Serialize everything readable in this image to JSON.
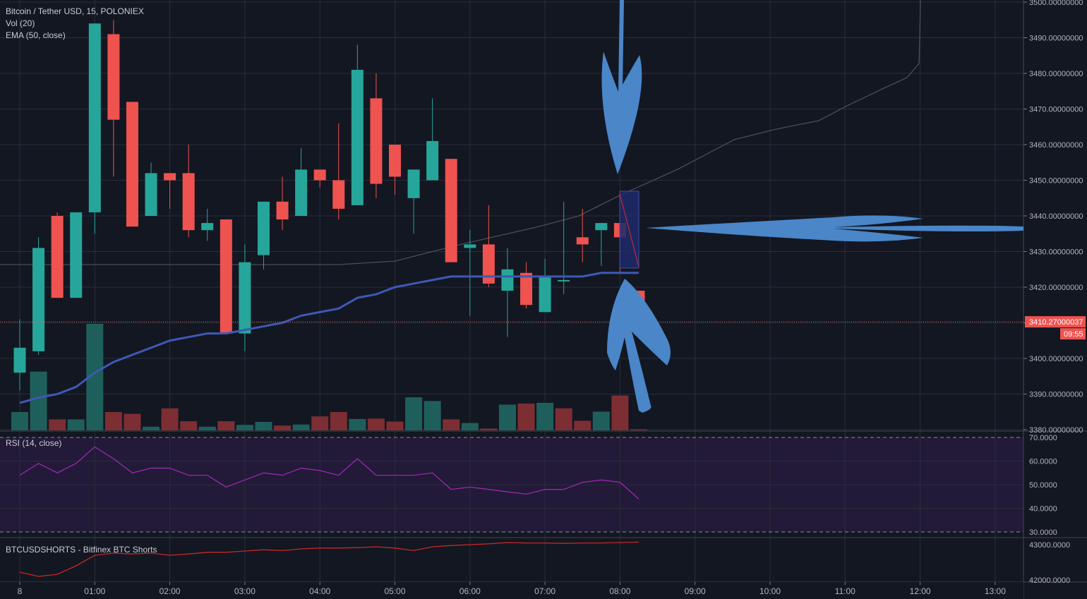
{
  "header": {
    "symbol_title": "Bitcoin / Tether USD, 15, POLONIEX",
    "vol_label": "Vol (20)",
    "ema_label": "EMA (50, close)"
  },
  "rsi": {
    "label": "RSI (14, close)"
  },
  "shorts": {
    "label": "BTCUSDSHORTS - Bitfinex BTC Shorts"
  },
  "price_tag": {
    "value": "3410.27000037",
    "countdown": "09:55"
  },
  "colors": {
    "background": "#131722",
    "grid": "#2a2e39",
    "up": "#26a69a",
    "down": "#ef5350",
    "ema": "#3f58b5",
    "rsi": "#9c27b0",
    "rsi_band": "#221a38",
    "shorts": "#c62828",
    "annotation_arrow": "#4a86c8",
    "annotation_box": "#1f2a6b"
  },
  "chart_data": [
    {
      "type": "candlestick",
      "title": "Bitcoin / Tether USD, 15, POLONIEX",
      "ylim": [
        3380,
        3500
      ],
      "y_ticks": [
        "3380.00000000",
        "3390.00000000",
        "3400.00000000",
        "3410.00000000",
        "3420.00000000",
        "3430.00000000",
        "3440.00000000",
        "3450.00000000",
        "3460.00000000",
        "3470.00000000",
        "3480.00000000",
        "3490.00000000",
        "3500.00000000"
      ],
      "x_ticks": [
        "8",
        "01:00",
        "02:00",
        "03:00",
        "04:00",
        "05:00",
        "06:00",
        "07:00",
        "08:00",
        "09:00",
        "10:00",
        "11:00",
        "12:00",
        "13:00"
      ],
      "candles": [
        {
          "t": "00:00",
          "o": 3396,
          "h": 3411,
          "l": 3391,
          "c": 3403
        },
        {
          "t": "00:15",
          "o": 3402,
          "h": 3434,
          "l": 3401,
          "c": 3431
        },
        {
          "t": "00:30",
          "o": 3440,
          "h": 3441,
          "l": 3417,
          "c": 3417
        },
        {
          "t": "00:45",
          "o": 3417,
          "h": 3441,
          "l": 3417,
          "c": 3441
        },
        {
          "t": "01:00",
          "o": 3441,
          "h": 3494,
          "l": 3435,
          "c": 3494
        },
        {
          "t": "01:15",
          "o": 3491,
          "h": 3495,
          "l": 3451,
          "c": 3467
        },
        {
          "t": "01:30",
          "o": 3472,
          "h": 3472,
          "l": 3437,
          "c": 3437
        },
        {
          "t": "01:45",
          "o": 3440,
          "h": 3455,
          "l": 3440,
          "c": 3452
        },
        {
          "t": "02:00",
          "o": 3452,
          "h": 3452,
          "l": 3442,
          "c": 3450
        },
        {
          "t": "02:15",
          "o": 3452,
          "h": 3460,
          "l": 3434,
          "c": 3436
        },
        {
          "t": "02:30",
          "o": 3436,
          "h": 3442,
          "l": 3433,
          "c": 3438
        },
        {
          "t": "02:45",
          "o": 3439,
          "h": 3439,
          "l": 3407,
          "c": 3407
        },
        {
          "t": "03:00",
          "o": 3407,
          "h": 3432,
          "l": 3402,
          "c": 3427
        },
        {
          "t": "03:15",
          "o": 3429,
          "h": 3444,
          "l": 3425,
          "c": 3444
        },
        {
          "t": "03:30",
          "o": 3444,
          "h": 3451,
          "l": 3436,
          "c": 3439
        },
        {
          "t": "03:45",
          "o": 3440,
          "h": 3459,
          "l": 3440,
          "c": 3453
        },
        {
          "t": "04:00",
          "o": 3453,
          "h": 3453,
          "l": 3448,
          "c": 3450
        },
        {
          "t": "04:15",
          "o": 3450,
          "h": 3466,
          "l": 3439,
          "c": 3442
        },
        {
          "t": "04:30",
          "o": 3443,
          "h": 3488,
          "l": 3443,
          "c": 3481
        },
        {
          "t": "04:45",
          "o": 3473,
          "h": 3480,
          "l": 3445,
          "c": 3449
        },
        {
          "t": "05:00",
          "o": 3460,
          "h": 3460,
          "l": 3446,
          "c": 3451
        },
        {
          "t": "05:15",
          "o": 3445,
          "h": 3453,
          "l": 3435,
          "c": 3453
        },
        {
          "t": "05:30",
          "o": 3450,
          "h": 3473,
          "l": 3450,
          "c": 3461
        },
        {
          "t": "05:45",
          "o": 3456,
          "h": 3456,
          "l": 3427,
          "c": 3427
        },
        {
          "t": "06:00",
          "o": 3431,
          "h": 3436,
          "l": 3412,
          "c": 3432
        },
        {
          "t": "06:15",
          "o": 3432,
          "h": 3443,
          "l": 3420,
          "c": 3421
        },
        {
          "t": "06:30",
          "o": 3419,
          "h": 3431,
          "l": 3406,
          "c": 3425
        },
        {
          "t": "06:45",
          "o": 3424,
          "h": 3427,
          "l": 3414,
          "c": 3415
        },
        {
          "t": "07:00",
          "o": 3413,
          "h": 3428,
          "l": 3413,
          "c": 3423
        },
        {
          "t": "07:15",
          "o": 3422,
          "h": 3444,
          "l": 3418,
          "c": 3422
        },
        {
          "t": "07:30",
          "o": 3434,
          "h": 3442,
          "l": 3427,
          "c": 3432
        },
        {
          "t": "07:45",
          "o": 3436,
          "h": 3438,
          "l": 3426,
          "c": 3438
        },
        {
          "t": "08:00",
          "o": 3438,
          "h": 3438,
          "l": 3424,
          "c": 3434
        },
        {
          "t": "08:15",
          "o": 3419,
          "h": 3419,
          "l": 3411,
          "c": 3411
        }
      ],
      "volume_up": [
        true,
        true,
        false,
        true,
        true,
        false,
        false,
        true,
        false,
        false,
        true,
        false,
        true,
        true,
        false,
        true,
        false,
        false,
        true,
        false,
        false,
        true,
        true,
        false,
        true,
        false,
        true,
        false,
        true,
        false,
        false,
        true,
        false,
        false
      ],
      "volume": [
        5,
        16,
        3,
        3,
        29,
        5,
        4.5,
        1,
        6,
        2.5,
        1,
        2.5,
        1.5,
        2.3,
        1.3,
        1.6,
        3.8,
        5,
        3.1,
        3.2,
        2.4,
        9,
        8,
        3,
        2,
        0.5,
        7,
        7.3,
        7.5,
        6,
        2.6,
        5.1,
        9.5,
        0.3
      ],
      "ema": [
        3387.5,
        3389,
        3390,
        3392,
        3396,
        3399,
        3401,
        3403,
        3405,
        3406,
        3407,
        3407,
        3408,
        3409,
        3410,
        3412,
        3413,
        3414,
        3417,
        3418,
        3420,
        3421,
        3422,
        3423,
        3423,
        3423,
        3423,
        3423,
        3423,
        3423,
        3423,
        3424,
        3424,
        3424
      ]
    },
    {
      "type": "line",
      "title": "RSI (14, close)",
      "ylim": [
        30,
        70
      ],
      "y_ticks": [
        "30.0000",
        "40.0000",
        "50.0000",
        "60.0000",
        "70.0000"
      ],
      "values": [
        54,
        59,
        55,
        59,
        66,
        61,
        55,
        57,
        57,
        54,
        54,
        49,
        52,
        55,
        54,
        57,
        56,
        54,
        61,
        54,
        54,
        54,
        55,
        48,
        49,
        48,
        47,
        46,
        48,
        48,
        51,
        52,
        51,
        44
      ]
    },
    {
      "type": "line",
      "title": "BTCUSDSHORTS - Bitfinex BTC Shorts",
      "y_ticks": [
        "42000.0000",
        "43000.0000"
      ],
      "values": [
        0.15,
        0.05,
        0.1,
        0.3,
        0.55,
        0.6,
        0.58,
        0.6,
        0.55,
        0.58,
        0.62,
        0.62,
        0.65,
        0.68,
        0.66,
        0.7,
        0.72,
        0.72,
        0.73,
        0.75,
        0.72,
        0.66,
        0.75,
        0.78,
        0.8,
        0.82,
        0.85,
        0.84,
        0.84,
        0.83,
        0.84,
        0.84,
        0.85,
        0.86
      ]
    }
  ]
}
